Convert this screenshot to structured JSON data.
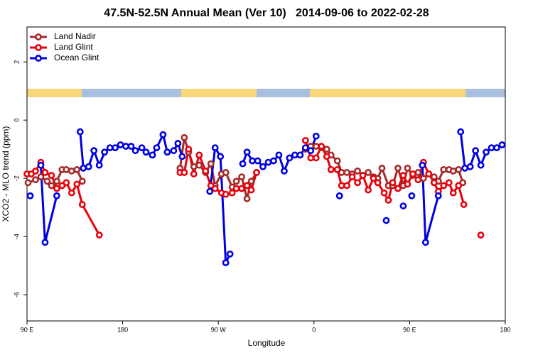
{
  "chart_data": {
    "type": "line",
    "title": "47.5N-52.5N Annual Mean (Ver 10)   2014-09-06 to 2022-02-28",
    "x_label": "Longitude",
    "y_label": "XCO2 - MLO trend (ppm)",
    "xlim": [
      90,
      540
    ],
    "ylim": [
      -6.9,
      3.2
    ],
    "xticks": [
      {
        "value": 90,
        "label": "90 E"
      },
      180,
      {
        "value": 270,
        "label": "90 W"
      },
      {
        "value": 360,
        "label": "0"
      },
      {
        "value": 450,
        "label": "90 E"
      },
      {
        "value": 540,
        "label": "180"
      }
    ],
    "yticks": [
      2,
      0,
      -2,
      -4,
      -6
    ],
    "legend": "top-left",
    "series": [
      {
        "name": "Land Nadir",
        "color": "#a52a2a",
        "x": [
          91,
          98,
          103,
          109,
          113,
          118,
          123,
          127,
          132,
          137,
          142,
          190,
          234,
          238,
          242,
          247,
          252,
          258,
          263,
          267,
          273,
          277,
          283,
          287,
          292,
          297,
          301,
          306,
          330,
          352,
          357,
          362,
          367,
          372,
          376,
          382,
          386,
          391,
          396,
          401,
          406,
          411,
          416,
          420,
          424,
          430,
          434,
          439,
          444,
          448,
          453,
          458,
          463,
          468,
          473,
          477,
          482,
          487,
          491,
          496,
          500
        ],
        "values": [
          -2.15,
          -2.05,
          -1.95,
          -2.1,
          -2.25,
          -2.1,
          -1.7,
          -1.7,
          -1.75,
          -1.7,
          -2.1,
          null,
          -1.65,
          -0.6,
          -1.1,
          -1.6,
          -1.55,
          -1.8,
          -1.5,
          -2.25,
          -1.85,
          -1.8,
          -2.3,
          -2.1,
          -1.95,
          -2.7,
          -2.1,
          -1.8,
          null,
          -1.0,
          -0.9,
          -0.9,
          -0.95,
          -1.0,
          -1.2,
          -1.4,
          -1.8,
          -1.8,
          -1.85,
          -1.75,
          -1.9,
          -1.8,
          -1.95,
          -2.0,
          -1.65,
          -2.25,
          -2.25,
          -1.65,
          -2.25,
          -1.65,
          -1.9,
          -1.8,
          -2.0,
          -1.85,
          -1.95,
          -2.1,
          -1.7,
          -1.7,
          -1.75,
          -1.7,
          -2.15
        ]
      },
      {
        "name": "Land Glint",
        "color": "#e8000b",
        "x": [
          90,
          94,
          98,
          103,
          107,
          113,
          118,
          123,
          127,
          132,
          137,
          142,
          158,
          200,
          234,
          238,
          242,
          247,
          252,
          258,
          263,
          267,
          273,
          277,
          283,
          287,
          292,
          297,
          301,
          306,
          330,
          352,
          357,
          362,
          367,
          372,
          376,
          382,
          386,
          391,
          396,
          401,
          406,
          411,
          416,
          420,
          426,
          430,
          434,
          439,
          444,
          448,
          453,
          458,
          463,
          468,
          473,
          477,
          482,
          487,
          491,
          496,
          501,
          510,
          517
        ],
        "values": [
          -1.85,
          -1.85,
          -1.75,
          -1.45,
          -1.8,
          -1.9,
          -2.35,
          -2.25,
          -2.15,
          -2.5,
          -2.2,
          -2.9,
          -3.95,
          null,
          -1.8,
          -1.8,
          -1.0,
          -1.85,
          -1.2,
          -1.75,
          -2.25,
          -2.35,
          -2.5,
          -2.55,
          -2.5,
          -2.35,
          -2.35,
          -2.25,
          -2.4,
          -1.8,
          null,
          -0.7,
          -1.3,
          -1.3,
          -0.9,
          -1.25,
          -1.7,
          -1.7,
          -2.25,
          -2.25,
          -1.95,
          -2.15,
          -1.9,
          -2.4,
          -2.0,
          -2.15,
          -2.5,
          -2.75,
          -2.15,
          -2.35,
          -1.9,
          -2.2,
          -1.85,
          -2.05,
          -1.45,
          -1.85,
          -2.15,
          -2.45,
          -2.25,
          -2.15,
          -2.5,
          -2.25,
          -2.9,
          null,
          -3.95
        ]
      },
      {
        "name": "Ocean Glint",
        "color": "#0000e0",
        "x": [
          93,
          98,
          103,
          107,
          118,
          128,
          140,
          143,
          148,
          153,
          158,
          163,
          168,
          173,
          178,
          183,
          188,
          192,
          198,
          202,
          208,
          212,
          218,
          222,
          228,
          232,
          236,
          250,
          262,
          267,
          272,
          277,
          281,
          288,
          293,
          297,
          302,
          307,
          312,
          317,
          322,
          327,
          332,
          337,
          342,
          347,
          352,
          357,
          362,
          370,
          384,
          400,
          428,
          435,
          444,
          448,
          452,
          457,
          462,
          465,
          477,
          488,
          498,
          502,
          507,
          512,
          517,
          522,
          527,
          532,
          537
        ],
        "values": [
          -2.6,
          null,
          -1.55,
          -4.2,
          -2.6,
          null,
          -0.4,
          -1.65,
          -1.6,
          -1.05,
          -1.55,
          -1.1,
          -0.95,
          -0.95,
          -0.85,
          -0.9,
          -0.9,
          -1.05,
          -0.95,
          -1.1,
          -1.2,
          -0.95,
          -0.5,
          -1.1,
          -1.05,
          -0.8,
          -1.25,
          null,
          -2.45,
          -0.95,
          -1.25,
          -4.9,
          -4.6,
          null,
          -1.5,
          -1.1,
          -1.4,
          -1.4,
          -1.6,
          -1.45,
          -1.4,
          -1.2,
          -1.75,
          -1.3,
          -1.2,
          -1.2,
          -0.95,
          -1.05,
          -0.55,
          null,
          -2.6,
          null,
          -3.45,
          null,
          -2.95,
          null,
          -2.6,
          null,
          -1.55,
          -4.2,
          -2.6,
          null,
          -0.4,
          -1.65,
          -1.6,
          -1.05,
          -1.55,
          -1.1,
          -0.95,
          -0.95,
          -0.85
        ]
      }
    ]
  }
}
